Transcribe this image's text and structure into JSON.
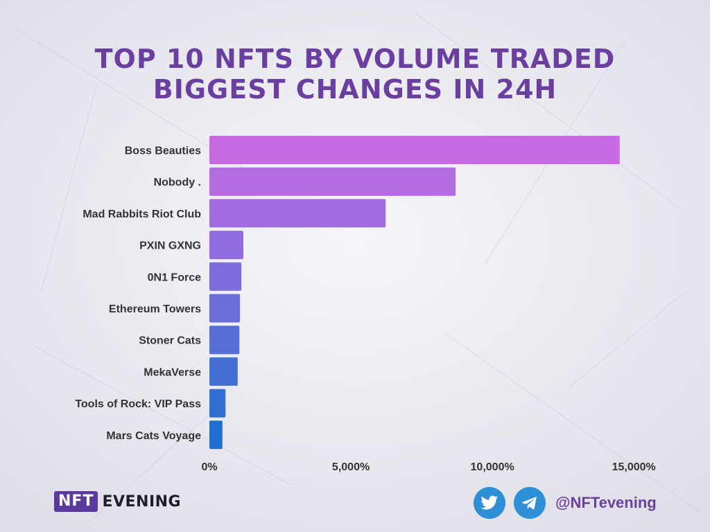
{
  "header": {
    "title_line1": "TOP 10 NFTS BY VOLUME TRADED",
    "title_line2": "BIGGEST CHANGES IN 24H"
  },
  "colors": {
    "title": "#6a3f9f",
    "bar_top": "#c86ae6",
    "bar_bottom": "#1f6fd0",
    "label": "#333333",
    "background": "#ececf2"
  },
  "chart_data": {
    "type": "bar",
    "orientation": "horizontal",
    "categories": [
      "Boss Beauties",
      "Nobody .",
      "Mad Rabbits Riot Club",
      "PXIN GXNG",
      "0N1 Force",
      "Ethereum Towers",
      "Stoner Cats",
      "MekaVerse",
      "Tools of Rock: VIP Pass",
      "Mars Cats Voyage"
    ],
    "values": [
      14500,
      8700,
      6230,
      1200,
      1130,
      1080,
      1060,
      1000,
      570,
      460
    ],
    "unit": "%",
    "xlim": [
      0,
      16000
    ],
    "xticks": [
      0,
      5000,
      10000,
      15000
    ],
    "xtick_labels": [
      "0%",
      "5,000%",
      "10,000%",
      "15,000%"
    ],
    "grid": false,
    "legend": "none"
  },
  "footer": {
    "logo_box": "NFT",
    "logo_word": "EVENING",
    "twitter_icon": "twitter-bird-icon",
    "telegram_icon": "telegram-plane-icon",
    "handle": "@NFTevening"
  }
}
